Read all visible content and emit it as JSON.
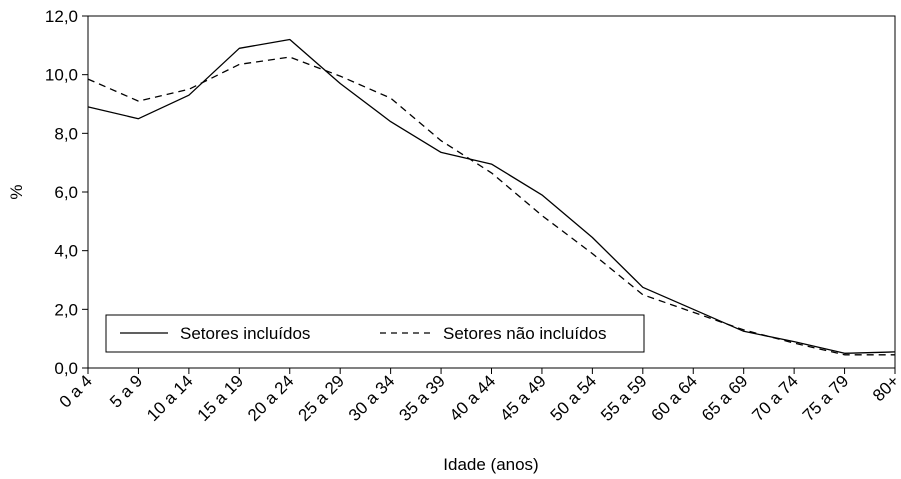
{
  "chart_data": {
    "type": "line",
    "title": "",
    "xlabel": "Idade (anos)",
    "ylabel": "%",
    "ylim": [
      0,
      12
    ],
    "yticks": [
      "0,0",
      "2,0",
      "4,0",
      "6,0",
      "8,0",
      "10,0",
      "12,0"
    ],
    "grid": false,
    "legend_position": "bottom-left inside",
    "categories": [
      "0 a 4",
      "5 a 9",
      "10 a 14",
      "15 a 19",
      "20 a 24",
      "25 a 29",
      "30 a 34",
      "35 a 39",
      "40 a 44",
      "45 a 49",
      "50 a 54",
      "55 a 59",
      "60 a 64",
      "65 a 69",
      "70 a 74",
      "75 a 79",
      "80+"
    ],
    "series": [
      {
        "name": "Setores incluídos",
        "style": "solid",
        "color": "#000000",
        "values": [
          8.9,
          8.5,
          9.3,
          10.9,
          11.2,
          9.7,
          8.4,
          7.35,
          6.95,
          5.9,
          4.45,
          2.75,
          2.0,
          1.25,
          0.9,
          0.5,
          0.55
        ]
      },
      {
        "name": "Setores não incluídos",
        "style": "dashed",
        "color": "#000000",
        "values": [
          9.85,
          9.1,
          9.5,
          10.35,
          10.6,
          9.95,
          9.2,
          7.75,
          6.65,
          5.2,
          3.9,
          2.5,
          1.9,
          1.3,
          0.85,
          0.45,
          0.45
        ]
      }
    ]
  }
}
